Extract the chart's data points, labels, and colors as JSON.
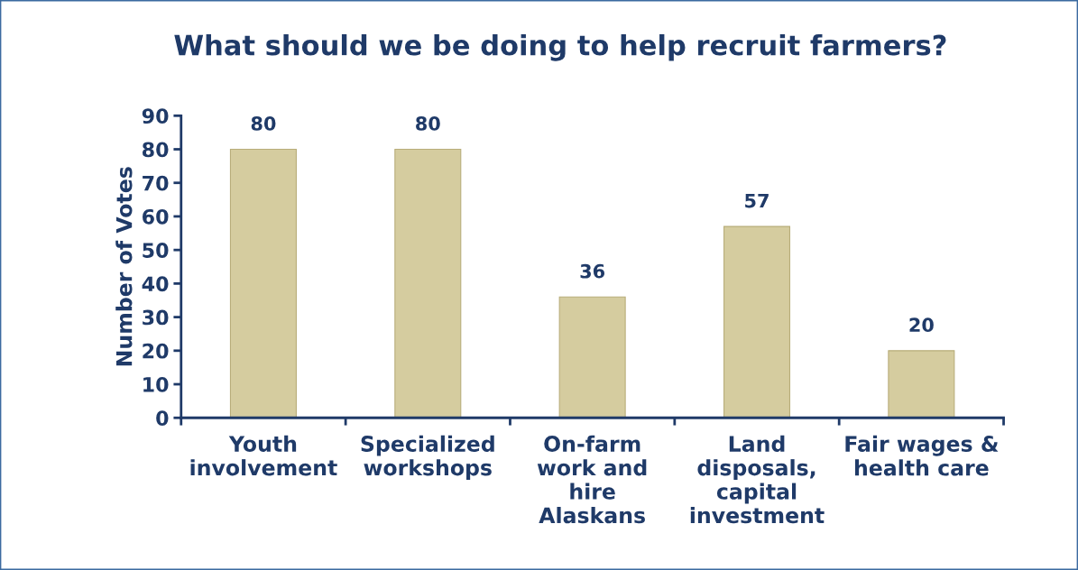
{
  "chart_data": {
    "type": "bar",
    "title": "What should we be doing to help recruit farmers?",
    "ylabel": "Number of Votes",
    "categories": [
      "Youth\ninvolvement",
      "Specialized\nworkshops",
      "On-farm\nwork and\nhire\nAlaskans",
      "Land\ndisposals,\ncapital\ninvestment",
      "Fair wages &\nhealth care"
    ],
    "values": [
      80,
      80,
      36,
      57,
      20
    ],
    "color": "#d5cc9f",
    "ylim": [
      0,
      90
    ],
    "yticks": [
      0,
      10,
      20,
      30,
      40,
      50,
      60,
      70,
      80,
      90
    ],
    "grid": false,
    "data_labels": true
  }
}
